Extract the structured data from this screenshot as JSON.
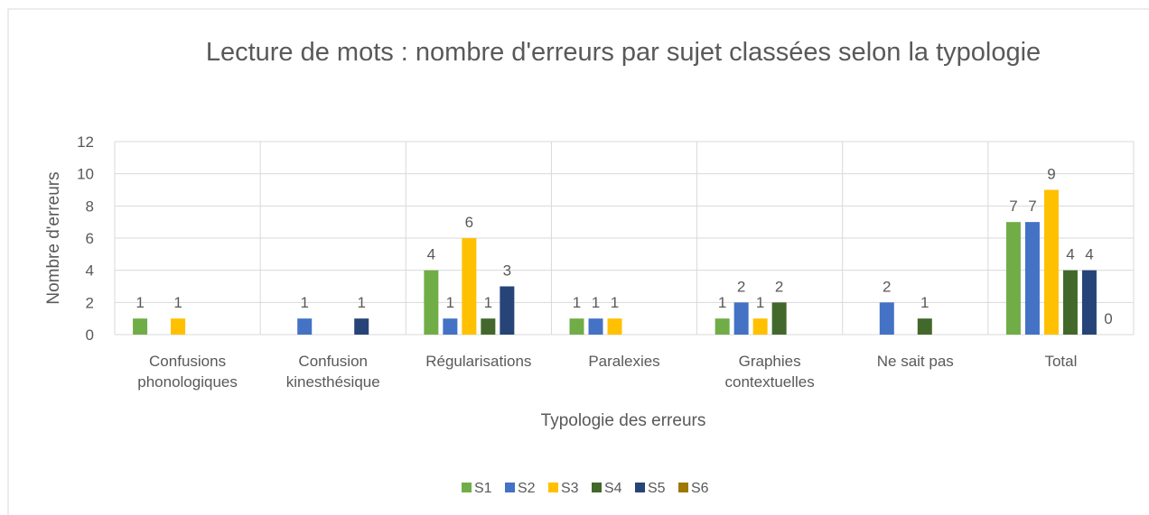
{
  "chart_data": {
    "type": "bar",
    "title": "Lecture de mots : nombre d'erreurs par sujet classées selon la typologie",
    "x_label": "Typologie des erreurs",
    "y_label": "Nombre d'erreurs",
    "categories": [
      "Confusions phonologiques",
      "Confusion kinesthésique",
      "Régularisations",
      "Paralexies",
      "Graphies contextuelles",
      "Ne sait pas",
      "Total"
    ],
    "series": [
      {
        "name": "S1",
        "color": "#70ad47",
        "values": [
          1,
          null,
          4,
          1,
          1,
          null,
          7
        ]
      },
      {
        "name": "S2",
        "color": "#4472c4",
        "values": [
          null,
          1,
          1,
          1,
          2,
          2,
          7
        ]
      },
      {
        "name": "S3",
        "color": "#ffc000",
        "values": [
          1,
          null,
          6,
          1,
          1,
          null,
          9
        ]
      },
      {
        "name": "S4",
        "color": "#43682b",
        "values": [
          null,
          null,
          1,
          null,
          2,
          1,
          4
        ]
      },
      {
        "name": "S5",
        "color": "#264478",
        "values": [
          null,
          1,
          3,
          null,
          null,
          null,
          4
        ]
      },
      {
        "name": "S6",
        "color": "#9e7700",
        "values": [
          null,
          null,
          null,
          null,
          null,
          null,
          0
        ]
      }
    ],
    "ylim": [
      0,
      12
    ],
    "yticks": [
      0,
      2,
      4,
      6,
      8,
      10,
      12
    ],
    "grid": true,
    "legend": "bottom"
  }
}
